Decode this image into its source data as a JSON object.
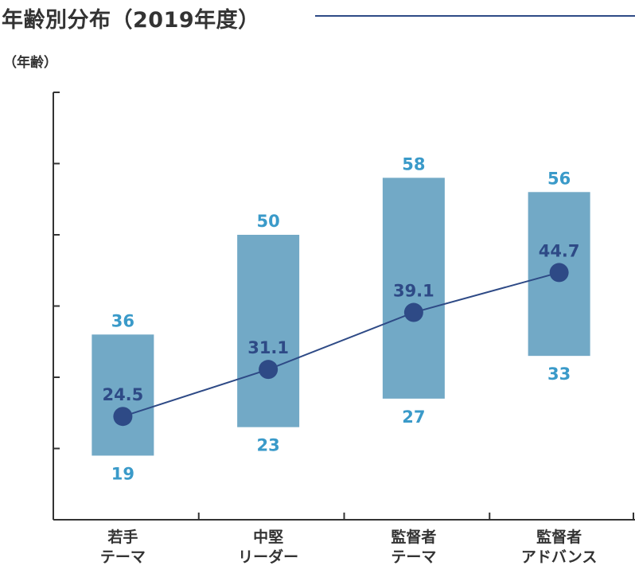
{
  "header": {
    "title": "年齢別分布（2019年度）",
    "y_unit": "（年齢）"
  },
  "colors": {
    "bar": "#72a9c6",
    "average": "#2e4a86",
    "value_label": "#3a9ac9",
    "axis": "#333333"
  },
  "chart_data": {
    "type": "bar",
    "categories": [
      [
        "若手",
        "テーマ"
      ],
      [
        "中堅",
        "リーダー"
      ],
      [
        "監督者",
        "テーマ"
      ],
      [
        "監督者",
        "アドバンス"
      ]
    ],
    "series": [
      {
        "min": [
          19,
          23,
          27,
          33
        ],
        "max": [
          36,
          50,
          58,
          56
        ]
      },
      {
        "values": [
          24.5,
          31.1,
          39.1,
          44.7
        ]
      }
    ],
    "min_labels": [
      "19",
      "23",
      "27",
      "33"
    ],
    "max_labels": [
      "36",
      "50",
      "58",
      "56"
    ],
    "avg_labels": [
      "24.5",
      "31.1",
      "39.1",
      "44.7"
    ],
    "ylim": [
      10,
      70
    ],
    "y_tick_step": 10,
    "y_tick_labels_shown": false,
    "grid": false,
    "legend": "none"
  }
}
